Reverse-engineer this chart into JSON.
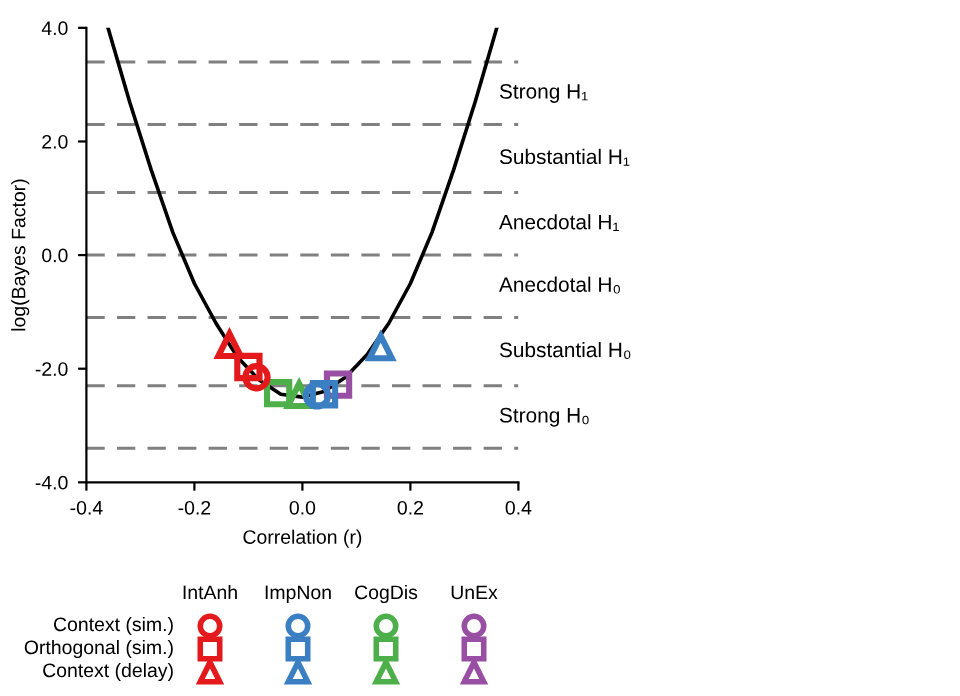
{
  "chart_data": {
    "type": "scatter",
    "xlabel": "Correlation (r)",
    "ylabel": "log(Bayes Factor)",
    "xlim": [
      -0.4,
      0.4
    ],
    "xticks": [
      {
        "value": -0.4,
        "label": "-0.4"
      },
      {
        "value": -0.2,
        "label": "-0.2"
      },
      {
        "value": 0,
        "label": "0.0"
      },
      {
        "value": 0.2,
        "label": "0.2"
      },
      {
        "value": 0.4,
        "label": "0.4"
      }
    ],
    "ylim": [
      -4,
      4
    ],
    "yticks": [
      {
        "value": -4,
        "label": "-4.0"
      },
      {
        "value": -2,
        "label": "-2.0"
      },
      {
        "value": 0,
        "label": "0.0"
      },
      {
        "value": 2,
        "label": "2.0"
      },
      {
        "value": 4,
        "label": "4.0"
      }
    ],
    "grid": false,
    "series": [
      {
        "type": "line",
        "color": "#000000",
        "marker": "none",
        "line_style": "solid",
        "x": [
          -0.36,
          -0.32,
          -0.28,
          -0.24,
          -0.2,
          -0.16,
          -0.12,
          -0.08,
          -0.04,
          0,
          0.04,
          0.08,
          0.12,
          0.16,
          0.2,
          0.24,
          0.28,
          0.32,
          0.36
        ],
        "values": [
          4.0,
          2.7,
          1.5,
          0.4,
          -0.5,
          -1.2,
          -1.8,
          -2.2,
          -2.45,
          -2.5,
          -2.4,
          -2.15,
          -1.75,
          -1.2,
          -0.5,
          0.4,
          1.5,
          2.7,
          4.0
        ]
      },
      {
        "color": "#e3191c",
        "marker": "circle",
        "x": [
          -0.085
        ],
        "values": [
          -2.15
        ]
      },
      {
        "color": "#e3191c",
        "marker": "square",
        "x": [
          -0.1
        ],
        "values": [
          -1.97
        ]
      },
      {
        "color": "#e3191c",
        "marker": "triangle",
        "x": [
          -0.135
        ],
        "values": [
          -1.58
        ]
      },
      {
        "color": "#3a7fc1",
        "marker": "circle",
        "x": [
          0.027
        ],
        "values": [
          -2.47
        ]
      },
      {
        "color": "#3a7fc1",
        "marker": "square",
        "x": [
          0.04
        ],
        "values": [
          -2.45
        ]
      },
      {
        "color": "#3a7fc1",
        "marker": "triangle",
        "x": [
          0.145
        ],
        "values": [
          -1.62
        ]
      },
      {
        "color": "#4daf4a",
        "marker": "circle",
        "x": [
          null
        ],
        "values": [
          null
        ]
      },
      {
        "color": "#4daf4a",
        "marker": "square",
        "x": [
          -0.045
        ],
        "values": [
          -2.43
        ]
      },
      {
        "color": "#4daf4a",
        "marker": "triangle",
        "x": [
          -0.006
        ],
        "values": [
          -2.46
        ]
      },
      {
        "color": "#984ea3",
        "marker": "circle",
        "x": [
          null
        ],
        "values": [
          null
        ]
      },
      {
        "color": "#984ea3",
        "marker": "square",
        "x": [
          0.066
        ],
        "values": [
          -2.28
        ]
      },
      {
        "color": "#984ea3",
        "marker": "triangle",
        "x": [
          null
        ],
        "values": [
          null
        ]
      }
    ],
    "ref_lines": [
      {
        "axis": "y",
        "value": 3.4,
        "color": "#808080",
        "line_style": "dashed"
      },
      {
        "axis": "y",
        "value": 2.3,
        "color": "#808080",
        "line_style": "dashed"
      },
      {
        "axis": "y",
        "value": 1.1,
        "color": "#808080",
        "line_style": "dashed"
      },
      {
        "axis": "y",
        "value": 0,
        "color": "#808080",
        "line_style": "dashed"
      },
      {
        "axis": "y",
        "value": -1.1,
        "color": "#808080",
        "line_style": "dashed"
      },
      {
        "axis": "y",
        "value": -2.3,
        "color": "#808080",
        "line_style": "dashed"
      },
      {
        "axis": "y",
        "value": -3.4,
        "color": "#808080",
        "line_style": "dashed"
      }
    ],
    "annotations": [
      "IntAnh",
      "ImpNon",
      "CogDis",
      "UnEx",
      "Context (sim.)",
      "Orthogonal (sim.)",
      "Context (delay)",
      "Strong H₁",
      "Substantial H₁",
      "Anecdotal H₁",
      "Anecdotal H₀",
      "Substantial H₀",
      "Strong H₀"
    ]
  }
}
